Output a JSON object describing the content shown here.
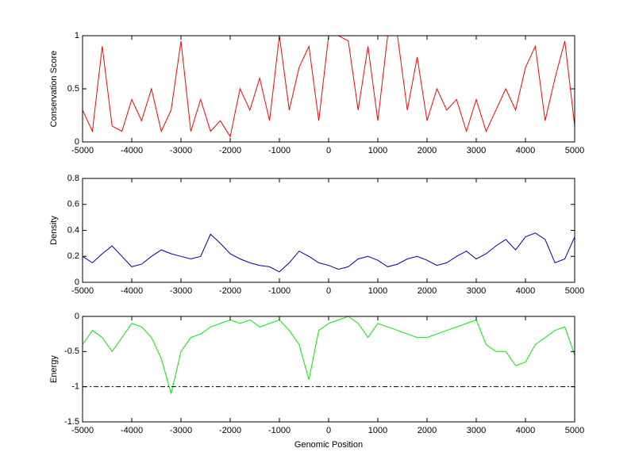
{
  "chart_data": [
    {
      "type": "line",
      "ylabel": "Conservation Score",
      "color": "#ff0000",
      "xlim": [
        -5000,
        5000
      ],
      "xticks": [
        -5000,
        -4000,
        -3000,
        -2000,
        -1000,
        0,
        1000,
        2000,
        3000,
        4000,
        5000
      ],
      "ylim": [
        0,
        1
      ],
      "yticks": [
        0,
        0.5,
        1
      ],
      "x": [
        -5000,
        -4800,
        -4600,
        -4400,
        -4200,
        -4000,
        -3800,
        -3600,
        -3400,
        -3200,
        -3000,
        -2800,
        -2600,
        -2400,
        -2200,
        -2000,
        -1800,
        -1600,
        -1400,
        -1200,
        -1000,
        -800,
        -600,
        -400,
        -200,
        0,
        200,
        400,
        600,
        800,
        1000,
        1200,
        1400,
        1600,
        1800,
        2000,
        2200,
        2400,
        2600,
        2800,
        3000,
        3200,
        3400,
        3600,
        3800,
        4000,
        4200,
        4400,
        4600,
        4800,
        5000
      ],
      "values": [
        0.3,
        0.1,
        0.9,
        0.15,
        0.1,
        0.4,
        0.2,
        0.5,
        0.1,
        0.3,
        0.95,
        0.1,
        0.4,
        0.1,
        0.2,
        0.05,
        0.5,
        0.3,
        0.6,
        0.2,
        1,
        0.3,
        0.7,
        0.9,
        0.2,
        1,
        1,
        0.95,
        0.3,
        0.9,
        0.2,
        1,
        1,
        0.3,
        0.8,
        0.2,
        0.5,
        0.3,
        0.4,
        0.1,
        0.4,
        0.1,
        0.3,
        0.5,
        0.3,
        0.7,
        0.9,
        0.2,
        0.6,
        0.95,
        0.15
      ]
    },
    {
      "type": "line",
      "ylabel": "Density",
      "color": "#0000aa",
      "xlim": [
        -5000,
        5000
      ],
      "xticks": [
        -5000,
        -4000,
        -3000,
        -2000,
        -1000,
        0,
        1000,
        2000,
        3000,
        4000,
        5000
      ],
      "ylim": [
        0,
        0.8
      ],
      "yticks": [
        0,
        0.2,
        0.4,
        0.6,
        0.8
      ],
      "x": [
        -5000,
        -4800,
        -4600,
        -4400,
        -4200,
        -4000,
        -3800,
        -3600,
        -3400,
        -3200,
        -3000,
        -2800,
        -2600,
        -2400,
        -2200,
        -2000,
        -1800,
        -1600,
        -1400,
        -1200,
        -1000,
        -800,
        -600,
        -400,
        -200,
        0,
        200,
        400,
        600,
        800,
        1000,
        1200,
        1400,
        1600,
        1800,
        2000,
        2200,
        2400,
        2600,
        2800,
        3000,
        3200,
        3400,
        3600,
        3800,
        4000,
        4200,
        4400,
        4600,
        4800,
        5000
      ],
      "values": [
        0.2,
        0.15,
        0.22,
        0.28,
        0.2,
        0.12,
        0.14,
        0.2,
        0.25,
        0.22,
        0.2,
        0.18,
        0.2,
        0.37,
        0.3,
        0.22,
        0.18,
        0.15,
        0.13,
        0.12,
        0.08,
        0.15,
        0.24,
        0.2,
        0.15,
        0.13,
        0.1,
        0.12,
        0.18,
        0.2,
        0.17,
        0.12,
        0.14,
        0.18,
        0.2,
        0.17,
        0.13,
        0.15,
        0.2,
        0.24,
        0.18,
        0.22,
        0.28,
        0.33,
        0.25,
        0.35,
        0.38,
        0.33,
        0.15,
        0.18,
        0.35
      ]
    },
    {
      "type": "line",
      "ylabel": "Energy",
      "xlabel": "Genomic Position",
      "color": "#00ee00",
      "xlim": [
        -5000,
        5000
      ],
      "xticks": [
        -5000,
        -4000,
        -3000,
        -2000,
        -1000,
        0,
        1000,
        2000,
        3000,
        4000,
        5000
      ],
      "ylim": [
        -1.5,
        0
      ],
      "yticks": [
        -1.5,
        -1,
        -0.5,
        0
      ],
      "reference_line": -1,
      "x": [
        -5000,
        -4800,
        -4600,
        -4400,
        -4200,
        -4000,
        -3800,
        -3600,
        -3400,
        -3200,
        -3000,
        -2800,
        -2600,
        -2400,
        -2200,
        -2000,
        -1800,
        -1600,
        -1400,
        -1200,
        -1000,
        -800,
        -600,
        -400,
        -200,
        0,
        200,
        400,
        600,
        800,
        1000,
        1200,
        1400,
        1600,
        1800,
        2000,
        2200,
        2400,
        2600,
        2800,
        3000,
        3200,
        3400,
        3600,
        3800,
        4000,
        4200,
        4400,
        4600,
        4800,
        5000
      ],
      "values": [
        -0.4,
        -0.2,
        -0.3,
        -0.5,
        -0.3,
        -0.1,
        -0.15,
        -0.3,
        -0.6,
        -1.1,
        -0.5,
        -0.3,
        -0.25,
        -0.15,
        -0.1,
        -0.05,
        -0.1,
        -0.05,
        -0.15,
        -0.1,
        -0.05,
        -0.2,
        -0.4,
        -0.9,
        -0.2,
        -0.1,
        -0.05,
        0,
        -0.1,
        -0.3,
        -0.1,
        -0.15,
        -0.2,
        -0.25,
        -0.3,
        -0.3,
        -0.25,
        -0.2,
        -0.15,
        -0.1,
        -0.05,
        -0.4,
        -0.5,
        -0.5,
        -0.7,
        -0.65,
        -0.4,
        -0.3,
        -0.2,
        -0.15,
        -0.55
      ]
    }
  ]
}
